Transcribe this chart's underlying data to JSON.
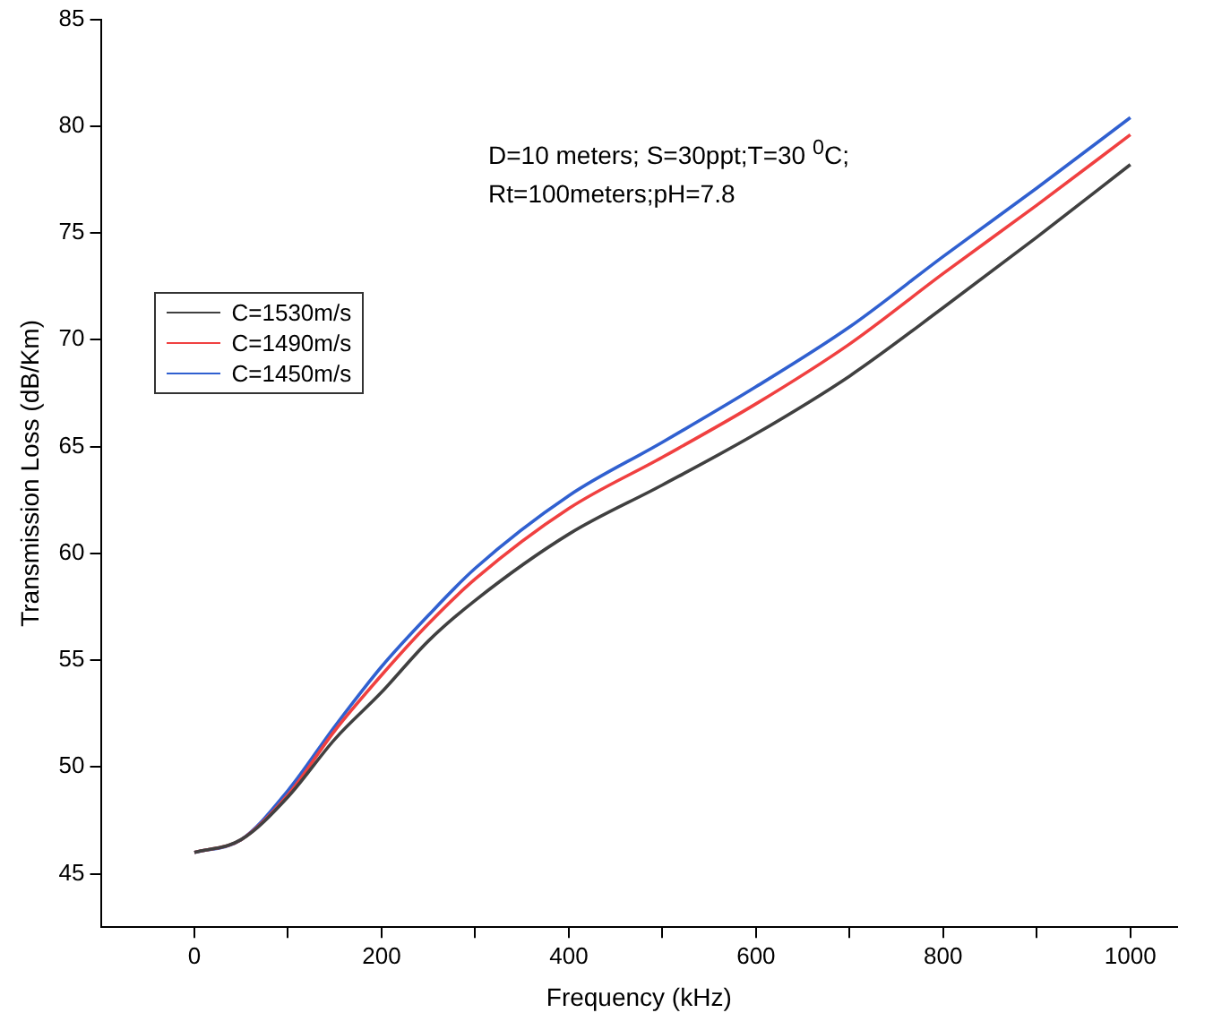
{
  "chart_data": {
    "type": "line",
    "xlabel": "Frequency (kHz)",
    "ylabel": "Transmission Loss (dB/Km)",
    "annotations": [
      "D=10 meters; S=30ppt;T=30 $^{0}$C;",
      "Rt=100meters;pH=7.8"
    ],
    "x": [
      0,
      50,
      100,
      150,
      200,
      250,
      300,
      400,
      500,
      600,
      700,
      800,
      900,
      1000
    ],
    "series": [
      {
        "name": "C=1530m/s",
        "color": "#404040",
        "values": [
          46.0,
          46.6,
          48.6,
          51.3,
          53.5,
          55.9,
          57.8,
          60.9,
          63.2,
          65.6,
          68.3,
          71.5,
          74.8,
          78.2
        ]
      },
      {
        "name": "C=1490m/s",
        "color": "#f04040",
        "values": [
          46.0,
          46.6,
          48.7,
          51.7,
          54.3,
          56.7,
          58.8,
          62.1,
          64.5,
          67.0,
          69.8,
          73.1,
          76.3,
          79.6
        ]
      },
      {
        "name": "C=1450m/s",
        "color": "#3060d0",
        "values": [
          46.0,
          46.6,
          48.9,
          51.9,
          54.7,
          57.1,
          59.3,
          62.7,
          65.2,
          67.8,
          70.6,
          73.9,
          77.1,
          80.4
        ]
      }
    ],
    "xlim": [
      -100,
      1050
    ],
    "xticks": [
      0,
      {
        "value": 100,
        "label": null
      },
      200,
      {
        "value": 300,
        "label": null
      },
      400,
      {
        "value": 500,
        "label": null
      },
      600,
      {
        "value": 700,
        "label": null
      },
      800,
      {
        "value": 900,
        "label": null
      },
      1000
    ],
    "ylim": [
      42.5,
      85
    ],
    "yticks": [
      45,
      50,
      55,
      60,
      65,
      70,
      75,
      80,
      85
    ],
    "grid": false,
    "legend": "left",
    "marker": "none",
    "line_style": "solid"
  }
}
